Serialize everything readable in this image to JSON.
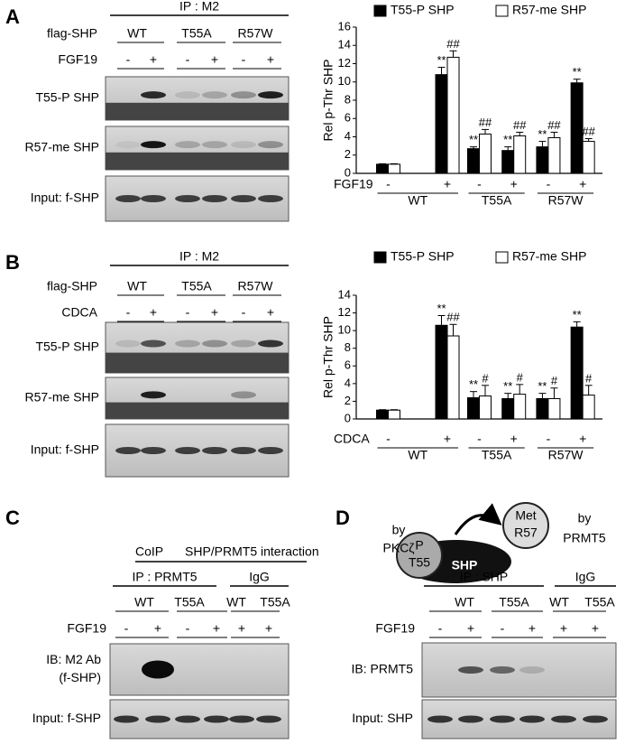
{
  "chart_data": [
    {
      "type": "bar",
      "y_label": "Rel p-Thr SHP",
      "x_label": "FGF19",
      "categories": [
        "-",
        "+",
        "-",
        "+",
        "-",
        "+"
      ],
      "groups": [
        "WT",
        "T55A",
        "R57W"
      ],
      "legend": "top",
      "series": [
        {
          "name": "T55-P SHP",
          "color": "#000000",
          "values": [
            1,
            10.8,
            2.7,
            2.5,
            2.9,
            9.9
          ],
          "errors": [
            0.05,
            0.8,
            0.2,
            0.4,
            0.6,
            0.4
          ],
          "annotations": [
            null,
            "**",
            "**",
            "**",
            "**",
            "**"
          ]
        },
        {
          "name": "R57-me SHP",
          "color": "#ffffff",
          "values": [
            1,
            12.7,
            4.3,
            4.1,
            3.9,
            3.5
          ],
          "errors": [
            0.05,
            0.7,
            0.5,
            0.4,
            0.6,
            0.3
          ],
          "annotations": [
            null,
            "##",
            "##",
            "##",
            "##",
            "##"
          ]
        }
      ],
      "ylim": [
        0,
        16
      ],
      "yticks": [
        0,
        2,
        4,
        6,
        8,
        10,
        12,
        14,
        16
      ]
    },
    {
      "type": "bar",
      "y_label": "Rel p-Thr SHP",
      "x_label": "CDCA",
      "categories": [
        "-",
        "+",
        "-",
        "+",
        "-",
        "+"
      ],
      "groups": [
        "WT",
        "T55A",
        "R57W"
      ],
      "legend": "top",
      "series": [
        {
          "name": "T55-P SHP",
          "color": "#000000",
          "values": [
            1,
            10.6,
            2.4,
            2.3,
            2.3,
            10.4
          ],
          "errors": [
            0.05,
            1.1,
            0.7,
            0.6,
            0.6,
            0.6
          ],
          "annotations": [
            null,
            "**",
            "**",
            "**",
            "**",
            "**"
          ]
        },
        {
          "name": "R57-me SHP",
          "color": "#ffffff",
          "values": [
            1,
            9.4,
            2.6,
            2.8,
            2.3,
            2.7
          ],
          "errors": [
            0.05,
            1.3,
            1.2,
            1.1,
            1.2,
            1.1
          ],
          "annotations": [
            null,
            "##",
            "#",
            "#",
            "#",
            "#"
          ]
        }
      ],
      "ylim": [
        0,
        14
      ],
      "yticks": [
        0,
        2,
        4,
        6,
        8,
        10,
        12,
        14
      ]
    }
  ],
  "panels": [
    {
      "letter": "A",
      "headers": [
        "IP : M2"
      ],
      "rows": [
        {
          "label": "flag-SHP",
          "items": [
            "WT",
            "T55A",
            "R57W"
          ]
        },
        {
          "label": "FGF19",
          "items": [
            "-",
            "+",
            "-",
            "+",
            "-",
            "+"
          ]
        }
      ],
      "blots": [
        [
          "T55-P SHP"
        ],
        [
          "R57-me SHP"
        ],
        [
          "Input: f-SHP"
        ]
      ]
    },
    {
      "letter": "B",
      "headers": [
        "IP : M2"
      ],
      "rows": [
        {
          "label": "flag-SHP",
          "items": [
            "WT",
            "T55A",
            "R57W"
          ]
        },
        {
          "label": "CDCA",
          "items": [
            "-",
            "+",
            "-",
            "+",
            "-",
            "+"
          ]
        }
      ],
      "blots": [
        [
          "T55-P SHP"
        ],
        [
          "R57-me SHP"
        ],
        [
          "Input: f-SHP"
        ]
      ]
    },
    {
      "letter": "C",
      "coip": [
        "CoIP",
        "SHP/PRMT5 interaction"
      ],
      "headers": [
        "IP : PRMT5",
        "IgG"
      ],
      "rows": [
        {
          "label": null,
          "items": [
            "WT",
            "T55A",
            "WT",
            "T55A"
          ]
        },
        {
          "label": "FGF19",
          "items": [
            "-",
            "+",
            "-",
            "+",
            "+",
            "+"
          ]
        }
      ],
      "blots": [
        [
          "IB: M2 Ab",
          "(f-SHP)"
        ],
        [
          "Input: f-SHP"
        ]
      ]
    },
    {
      "letter": "D",
      "headers": [
        "IP : SHP",
        "IgG"
      ],
      "rows": [
        {
          "label": null,
          "items": [
            "WT",
            "T55A",
            "WT",
            "T55A"
          ]
        },
        {
          "label": "FGF19",
          "items": [
            "-",
            "+",
            "-",
            "+",
            "+",
            "+"
          ]
        }
      ],
      "blots": [
        [
          "IB: PRMT5"
        ],
        [
          "Input: SHP"
        ]
      ],
      "diagram": {
        "left_enzyme": [
          "by",
          "PKCζ"
        ],
        "p_site": [
          "P",
          "T55"
        ],
        "protein": "SHP",
        "met_site": [
          "Met",
          "R57"
        ],
        "right_enzyme": [
          "by",
          "PRMT5"
        ]
      }
    }
  ]
}
